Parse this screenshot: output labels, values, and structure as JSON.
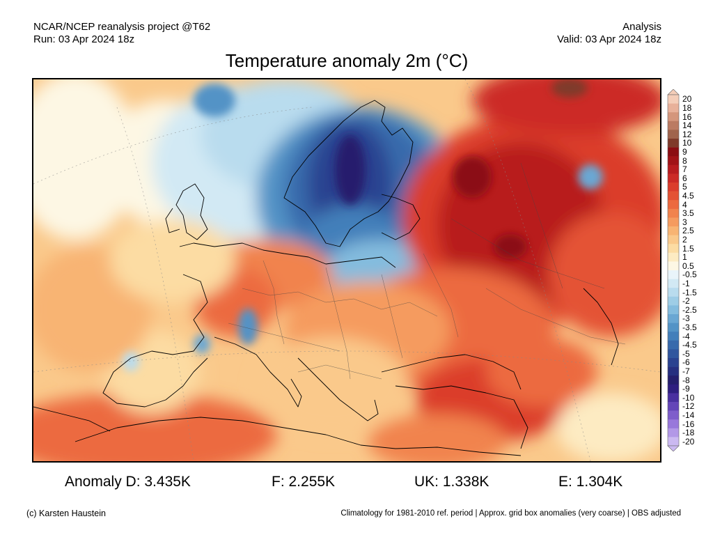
{
  "header": {
    "source": "NCAR/NCEP reanalysis project @T62",
    "run": "Run: 03 Apr 2024 18z",
    "kind": "Analysis",
    "valid": "Valid: 03 Apr 2024 18z"
  },
  "title": "Temperature anomaly 2m (°C)",
  "colorbar": {
    "labels": [
      "20",
      "18",
      "16",
      "14",
      "12",
      "10",
      "9",
      "8",
      "7",
      "6",
      "5",
      "4.5",
      "4",
      "3.5",
      "3",
      "2.5",
      "2",
      "1.5",
      "1",
      "0.5",
      "-0.5",
      "-1",
      "-1.5",
      "-2",
      "-2.5",
      "-3",
      "-3.5",
      "-4",
      "-4.5",
      "-5",
      "-6",
      "-7",
      "-8",
      "-9",
      "-10",
      "-12",
      "-14",
      "-16",
      "-18",
      "-20"
    ],
    "colors": [
      "#f4cdb8",
      "#e8b19a",
      "#d4967c",
      "#bb7b62",
      "#a0644c",
      "#7f3a2a",
      "#8b0d12",
      "#a11317",
      "#b81c1f",
      "#cc2a26",
      "#db3d2c",
      "#e45234",
      "#ec6a3f",
      "#f1834d",
      "#f59b5f",
      "#f8b473",
      "#fac98b",
      "#fcdca3",
      "#fdebc2",
      "#fdf7e4",
      "#e9f4fa",
      "#d2e9f4",
      "#b9dcee",
      "#9ecde6",
      "#84bcde",
      "#6aa7d3",
      "#5393c6",
      "#437fba",
      "#386aac",
      "#30569e",
      "#2a4290",
      "#262f80",
      "#251f6d",
      "#2f1f80",
      "#4a30a0",
      "#6445b8",
      "#7e5dcb",
      "#9878db",
      "#b298e7",
      "#cbb9f1"
    ]
  },
  "stats": {
    "d": "Anomaly D: 3.435K",
    "f": "F: 2.255K",
    "uk": "UK: 1.338K",
    "e": "E: 1.304K"
  },
  "footer": {
    "copyright": "(c) Karsten Haustein",
    "note": "Climatology for 1981-2010 ref. period | Approx. grid box anomalies (very coarse) | OBS adjusted"
  }
}
